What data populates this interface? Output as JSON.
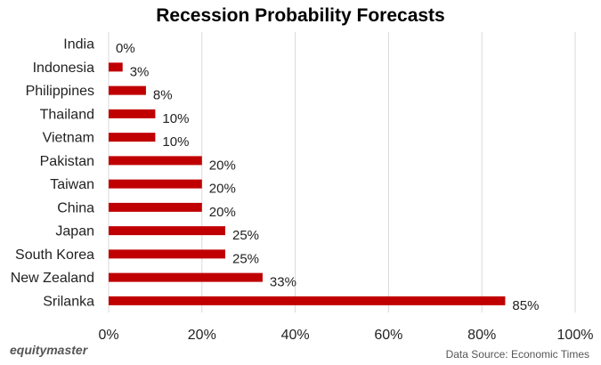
{
  "chart_data": {
    "type": "bar",
    "orientation": "horizontal",
    "title": "Recession Probability Forecasts",
    "categories": [
      "India",
      "Indonesia",
      "Philippines",
      "Thailand",
      "Vietnam",
      "Pakistan",
      "Taiwan",
      "China",
      "Japan",
      "South Korea",
      "New Zealand",
      "Srilanka"
    ],
    "values": [
      0,
      3,
      8,
      10,
      10,
      20,
      20,
      20,
      25,
      25,
      33,
      85
    ],
    "data_labels": [
      "0%",
      "3%",
      "8%",
      "10%",
      "10%",
      "20%",
      "20%",
      "20%",
      "25%",
      "25%",
      "33%",
      "85%"
    ],
    "xlim": [
      0,
      100
    ],
    "x_ticks": [
      0,
      20,
      40,
      60,
      80,
      100
    ],
    "x_tick_labels": [
      "0%",
      "20%",
      "40%",
      "60%",
      "80%",
      "100%"
    ],
    "grid": "vertical",
    "legend": "none",
    "bar_color": "#c00000"
  },
  "footer": {
    "brand": "equitymaster",
    "source": "Data Source: Economic Times"
  }
}
